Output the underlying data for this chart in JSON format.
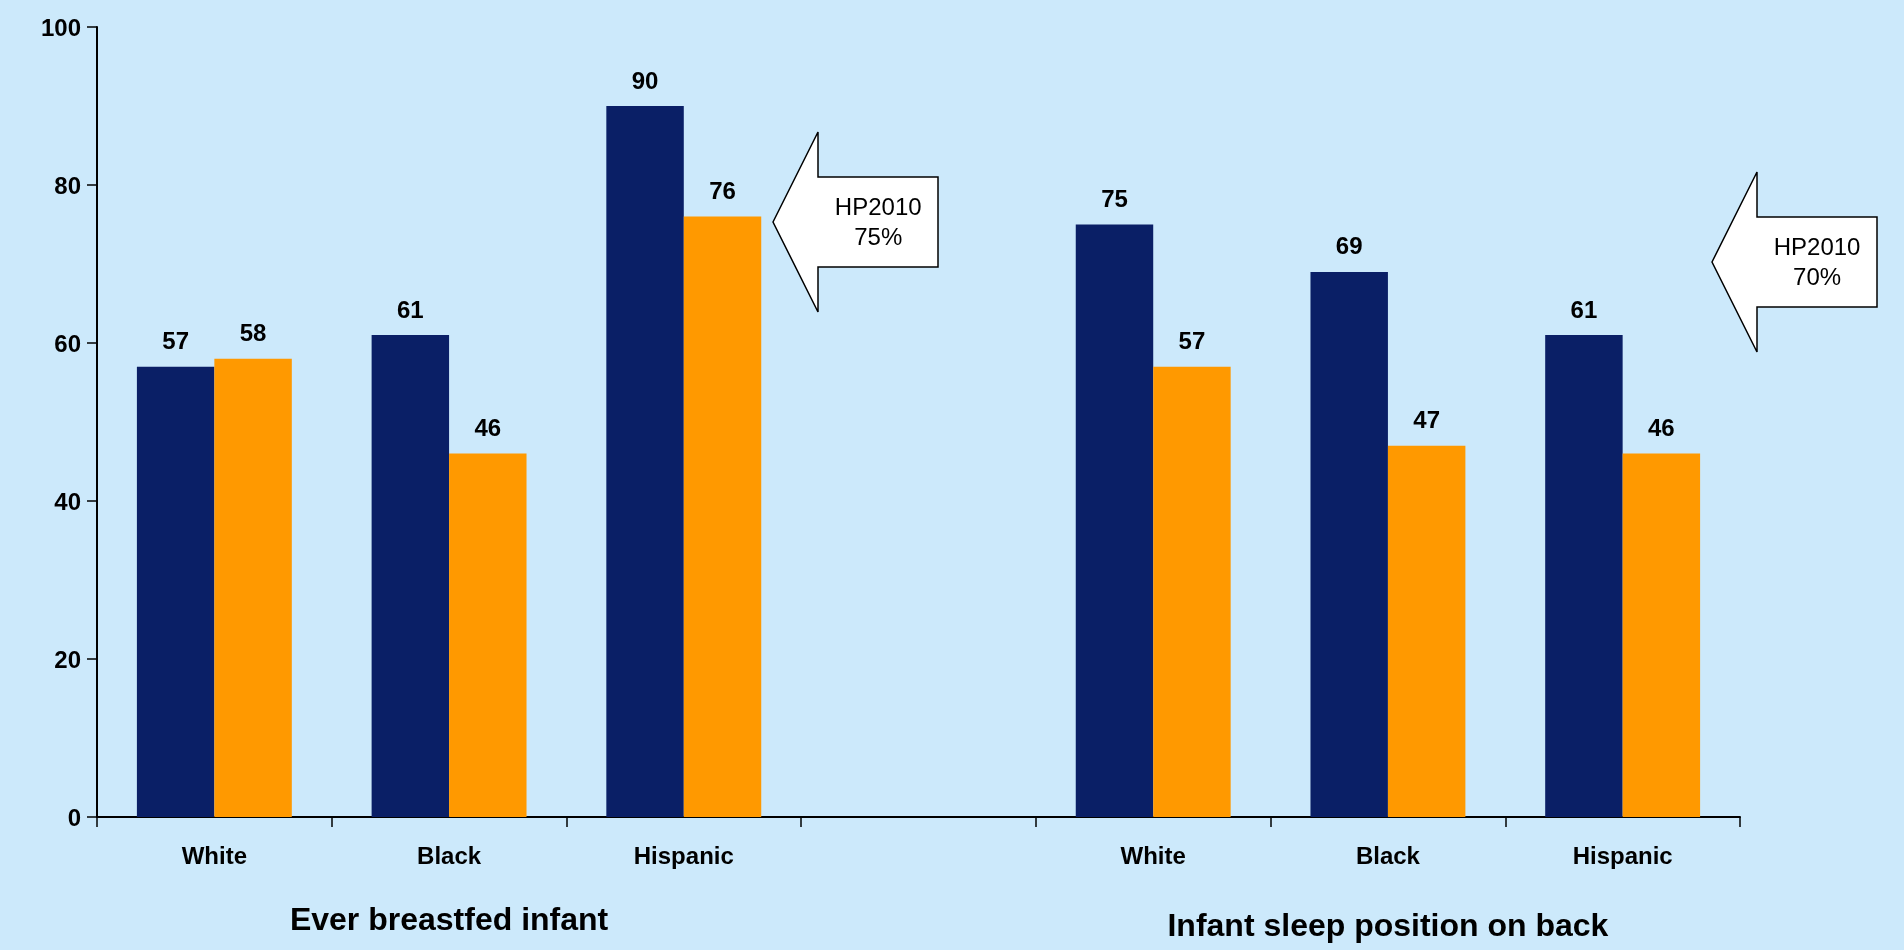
{
  "chart_data": {
    "type": "bar",
    "categories": [
      "White",
      "Black",
      "Hispanic",
      null,
      "White",
      "Black",
      "Hispanic"
    ],
    "series": [
      {
        "color": "#0a1f66",
        "values": [
          57,
          61,
          90,
          null,
          75,
          69,
          61
        ]
      },
      {
        "color": "#ff9900",
        "values": [
          58,
          46,
          76,
          null,
          57,
          47,
          46
        ]
      }
    ],
    "ylim": [
      0,
      100
    ],
    "yticks": [
      0,
      20,
      40,
      60,
      80,
      100
    ],
    "data_labels": true,
    "annotations": [
      "Ever breastfed infant",
      "Infant sleep position on back",
      "HP2010\n75%",
      "HP2010\n70%"
    ]
  }
}
